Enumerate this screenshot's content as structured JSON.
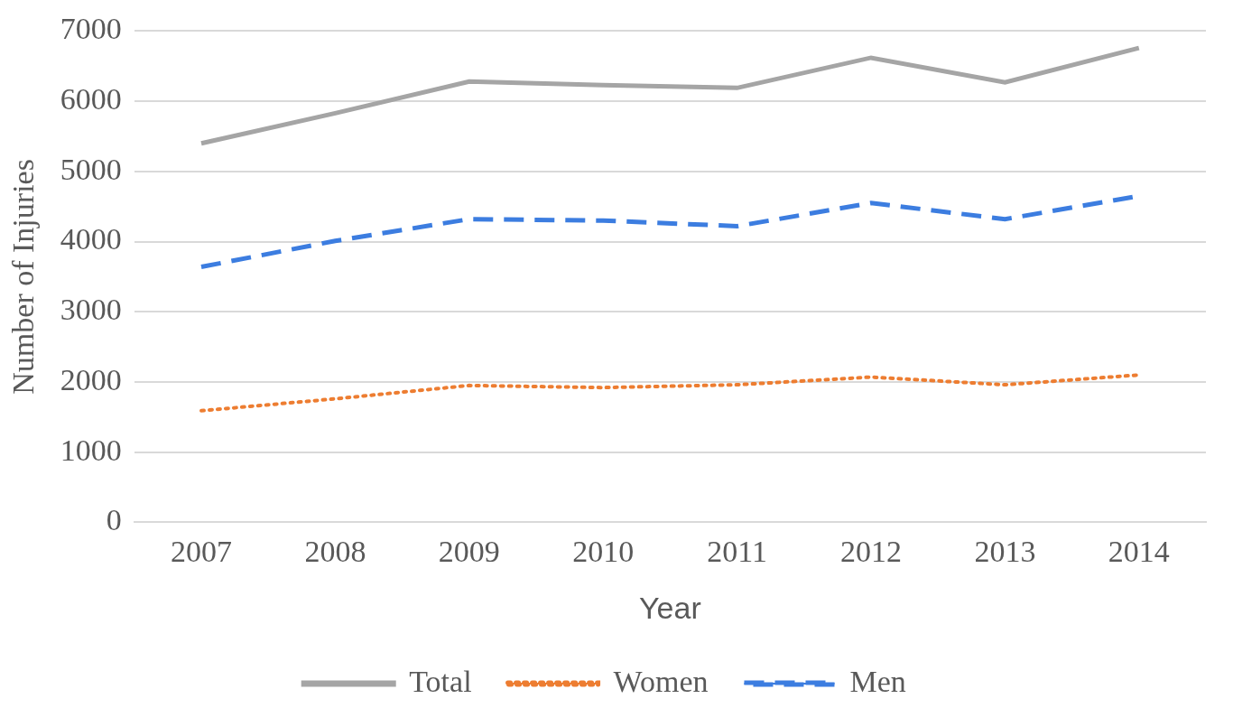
{
  "chart_data": {
    "type": "line",
    "x_label": "Year",
    "y_label": "Number of Injuries",
    "categories": [
      "2007",
      "2008",
      "2009",
      "2010",
      "2011",
      "2012",
      "2013",
      "2014"
    ],
    "series": [
      {
        "name": "Total",
        "color": "#a5a5a5",
        "line_style": "solid",
        "values": [
          5400,
          5830,
          6280,
          6230,
          6190,
          6620,
          6270,
          6760
        ]
      },
      {
        "name": "Women",
        "color": "#ed7d31",
        "line_style": "dotted",
        "values": [
          1590,
          1760,
          1950,
          1920,
          1960,
          2070,
          1960,
          2100
        ]
      },
      {
        "name": "Men",
        "color": "#3c7de0",
        "line_style": "dashed",
        "values": [
          3640,
          4010,
          4320,
          4300,
          4220,
          4550,
          4320,
          4650
        ]
      }
    ],
    "ylim": [
      0,
      7000
    ],
    "yticks": [
      0,
      1000,
      2000,
      3000,
      4000,
      5000,
      6000,
      7000
    ],
    "grid": true,
    "legend": "bottom"
  }
}
